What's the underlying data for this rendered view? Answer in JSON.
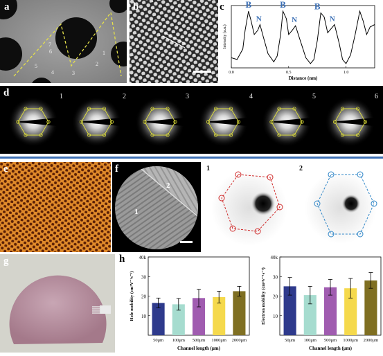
{
  "panels": {
    "a": {
      "label": "a",
      "regions": [
        "1",
        "2",
        "3",
        "4",
        "5",
        "6",
        "7"
      ]
    },
    "b": {
      "label": "b"
    },
    "c": {
      "label": "c"
    },
    "d": {
      "label": "d",
      "frames": [
        "1",
        "2",
        "3",
        "4",
        "5",
        "6"
      ]
    },
    "e": {
      "label": "e"
    },
    "f": {
      "label": "f",
      "regions": [
        "1",
        "2"
      ]
    },
    "f_diff": {
      "labels": [
        "1",
        "2"
      ]
    },
    "g": {
      "label": "g"
    },
    "h": {
      "label": "h"
    }
  },
  "chart_data": [
    {
      "type": "line",
      "panel": "c",
      "xlabel": "Distance (nm)",
      "ylabel": "Intensity (a.u.)",
      "xticks": [
        "0.0",
        "0.5",
        "1.0"
      ],
      "xlim": [
        0,
        1.25
      ],
      "annotations": [
        "B",
        "N",
        "B",
        "N",
        "B",
        "N"
      ],
      "x": [
        0.0,
        0.05,
        0.1,
        0.12,
        0.15,
        0.17,
        0.2,
        0.23,
        0.25,
        0.28,
        0.32,
        0.37,
        0.4,
        0.43,
        0.45,
        0.48,
        0.5,
        0.53,
        0.56,
        0.6,
        0.65,
        0.69,
        0.72,
        0.75,
        0.78,
        0.81,
        0.84,
        0.87,
        0.9,
        0.94,
        0.97,
        1.0,
        1.04,
        1.08,
        1.12,
        1.15,
        1.18,
        1.21,
        1.25
      ],
      "y": [
        0.15,
        0.12,
        0.3,
        0.62,
        0.95,
        0.8,
        0.55,
        0.62,
        0.72,
        0.5,
        0.22,
        0.08,
        0.18,
        0.55,
        0.95,
        0.82,
        0.55,
        0.62,
        0.7,
        0.45,
        0.15,
        0.05,
        0.12,
        0.45,
        0.92,
        0.85,
        0.58,
        0.65,
        0.72,
        0.4,
        0.12,
        0.05,
        0.2,
        0.55,
        0.95,
        0.78,
        0.55,
        0.68,
        0.72
      ]
    },
    {
      "type": "bar",
      "panel": "h-left",
      "ylabel": "Hole mobility (cm²V⁻¹s⁻¹)",
      "xlabel": "Channel length (μm)",
      "categories": [
        "50μm",
        "100μm",
        "500μm",
        "1000μm",
        "2000μm"
      ],
      "values": [
        16.5,
        15.8,
        19.0,
        19.5,
        22.5
      ],
      "errors": [
        2.5,
        3.0,
        4.5,
        3.0,
        2.5
      ],
      "ylim": [
        0,
        40
      ],
      "yticks": [
        "0",
        "10",
        "20",
        "30",
        "40k"
      ],
      "colors": [
        "#2e3a8c",
        "#a6dccf",
        "#a05cb0",
        "#f5d94c",
        "#7f6f22"
      ]
    },
    {
      "type": "bar",
      "panel": "h-right",
      "ylabel": "Electron mobility (cm²V⁻¹s⁻¹)",
      "xlabel": "Channel length (μm)",
      "categories": [
        "50μm",
        "100μm",
        "500μm",
        "1000μm",
        "2000μm"
      ],
      "values": [
        25.0,
        20.5,
        24.5,
        24.0,
        28.0
      ],
      "errors": [
        4.5,
        4.5,
        4.0,
        5.0,
        4.0
      ],
      "ylim": [
        0,
        40
      ],
      "yticks": [
        "0",
        "10",
        "20",
        "30",
        "40k"
      ],
      "colors": [
        "#2e3a8c",
        "#a6dccf",
        "#a05cb0",
        "#f5d94c",
        "#7f6f22"
      ]
    }
  ]
}
